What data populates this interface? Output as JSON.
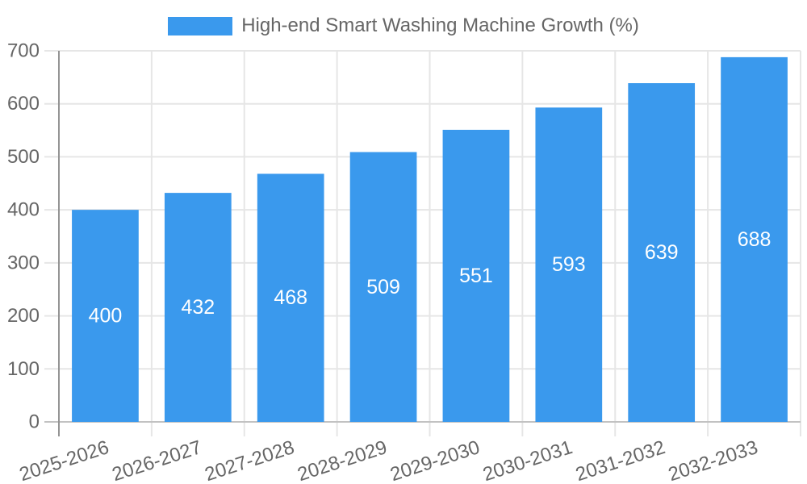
{
  "legend": {
    "position": "top"
  },
  "chart_data": {
    "type": "bar",
    "title": "High-end Smart Washing Machine Growth (%)",
    "categories": [
      "2025-2026",
      "2026-2027",
      "2027-2028",
      "2028-2029",
      "2029-2030",
      "2030-2031",
      "2031-2032",
      "2032-2033"
    ],
    "values": [
      400,
      432,
      468,
      509,
      551,
      593,
      639,
      688
    ],
    "xlabel": "",
    "ylabel": "",
    "ylim": [
      0,
      700
    ],
    "ytick_step": 100,
    "grid": true,
    "legend_position": "top",
    "x_label_rotation_deg": -18,
    "value_labels_position": "inside-center",
    "colors": {
      "bar": "#3A99ED",
      "grid": "#e6e6e6",
      "zero_line": "#c2c2c2",
      "axis_line": "#949494",
      "text": "#666666",
      "value_label": "#ffffff"
    }
  }
}
